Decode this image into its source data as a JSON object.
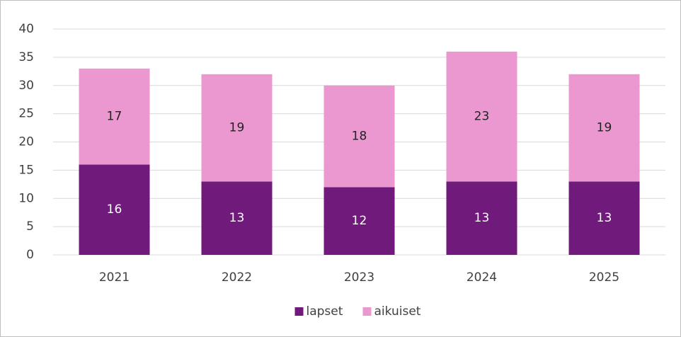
{
  "chart_data": {
    "type": "stacked_bar",
    "categories": [
      "2021",
      "2022",
      "2023",
      "2024",
      "2025"
    ],
    "series": [
      {
        "name": "lapset",
        "color": "#701b7b",
        "values": [
          16,
          13,
          12,
          13,
          13
        ]
      },
      {
        "name": "aikuiset",
        "color": "#eb98d0",
        "values": [
          17,
          19,
          18,
          23,
          19
        ]
      }
    ],
    "ylim": [
      0,
      40
    ],
    "yticks": [
      0,
      5,
      10,
      15,
      20,
      25,
      30,
      35,
      40
    ],
    "grid": true,
    "legend": "bottom"
  }
}
